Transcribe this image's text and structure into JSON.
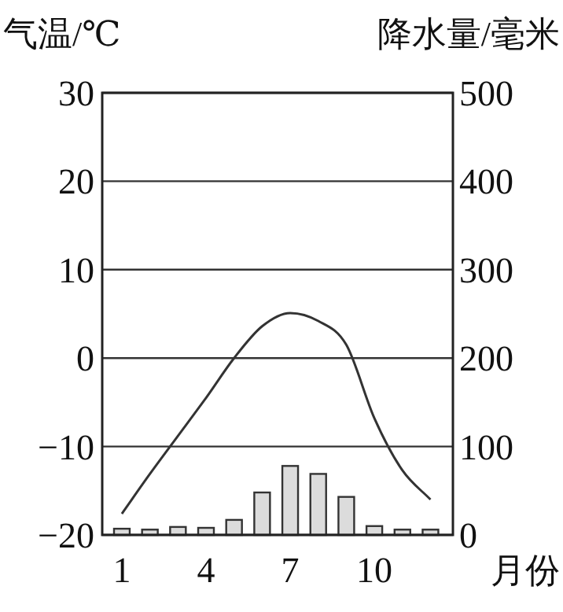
{
  "chart_data": {
    "type": "bar",
    "ylabel": "气温/℃",
    "y2label": "降水量/毫米",
    "xlabel": "月份",
    "x": [
      1,
      2,
      3,
      4,
      5,
      6,
      7,
      8,
      9,
      10,
      11,
      12
    ],
    "xlim": [
      0.3,
      12.8
    ],
    "xticks": [
      1,
      4,
      7,
      10
    ],
    "ylim": [
      -20,
      30
    ],
    "yticks": [
      -20,
      -10,
      0,
      10,
      20,
      30
    ],
    "y2lim": [
      0,
      500
    ],
    "y2ticks": [
      0,
      100,
      200,
      300,
      400,
      500
    ],
    "grid": "y",
    "series": [
      {
        "axis": "y2",
        "color": "#dcdcdc",
        "values": [
          7,
          6,
          9,
          8,
          17,
          48,
          78,
          69,
          43,
          10,
          6,
          6
        ]
      },
      {
        "type": "line",
        "axis": "y",
        "color": "#333333",
        "values": [
          -17.6,
          -13.1,
          -8.8,
          -4.5,
          0,
          3.6,
          5.1,
          4.2,
          1.5,
          -6.8,
          -12.7,
          -16
        ]
      }
    ]
  }
}
